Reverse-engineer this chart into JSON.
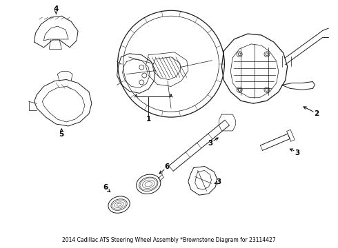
{
  "title": "2014 Cadillac ATS Steering Wheel Assembly *Brownstone Diagram for 23114427",
  "background_color": "#ffffff",
  "line_color": "#1a1a1a",
  "label_color": "#000000",
  "fig_width": 4.9,
  "fig_height": 3.6,
  "dpi": 100,
  "title_fontsize": 5.5,
  "label_fontsize": 7.5
}
